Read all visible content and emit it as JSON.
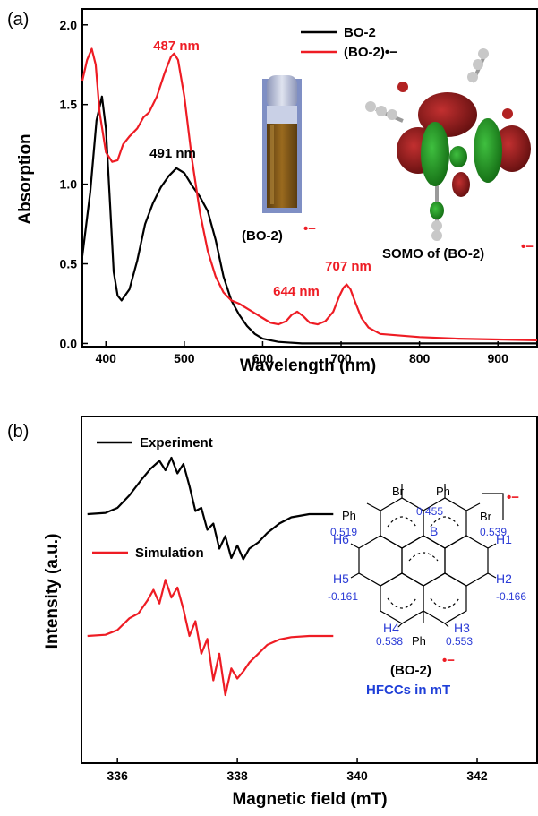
{
  "chart_data": [
    {
      "panel_label": "(a)",
      "type": "line",
      "xlabel": "Wavelength (nm)",
      "ylabel": "Absorption",
      "xlim": [
        370,
        950
      ],
      "ylim": [
        -0.02,
        2.1
      ],
      "xticks": [
        400,
        500,
        600,
        700,
        800,
        900
      ],
      "yticks": [
        0.0,
        0.5,
        1.0,
        1.5,
        2.0
      ],
      "xtick_labels": [
        "400",
        "500",
        "600",
        "700",
        "800",
        "900"
      ],
      "ytick_labels": [
        "0.0",
        "0.5",
        "1.0",
        "1.5",
        "2.0"
      ],
      "grid": false,
      "legend_position": "top-right",
      "series": [
        {
          "name": "BO-2",
          "color": "#000000",
          "x": [
            370,
            380,
            388,
            395,
            400,
            405,
            410,
            415,
            420,
            430,
            440,
            450,
            460,
            470,
            480,
            490,
            500,
            510,
            520,
            530,
            540,
            550,
            560,
            570,
            580,
            590,
            600,
            610,
            620,
            650,
            700,
            800,
            950
          ],
          "y": [
            0.55,
            0.95,
            1.4,
            1.55,
            1.35,
            0.9,
            0.45,
            0.3,
            0.27,
            0.34,
            0.52,
            0.75,
            0.88,
            0.98,
            1.05,
            1.1,
            1.07,
            0.99,
            0.92,
            0.83,
            0.65,
            0.42,
            0.27,
            0.18,
            0.11,
            0.06,
            0.03,
            0.02,
            0.01,
            0.0,
            0.0,
            0.0,
            0.0
          ]
        },
        {
          "name": "(BO-2)•−",
          "color": "#ee1c24",
          "x": [
            370,
            376,
            382,
            387,
            392,
            400,
            408,
            415,
            422,
            430,
            440,
            448,
            455,
            465,
            475,
            483,
            487,
            492,
            500,
            510,
            520,
            530,
            540,
            550,
            560,
            570,
            580,
            590,
            600,
            610,
            620,
            630,
            637,
            644,
            652,
            660,
            670,
            680,
            690,
            698,
            703,
            707,
            712,
            718,
            726,
            735,
            750,
            800,
            850,
            900,
            950
          ],
          "y": [
            1.65,
            1.78,
            1.85,
            1.75,
            1.45,
            1.2,
            1.14,
            1.15,
            1.25,
            1.3,
            1.35,
            1.42,
            1.45,
            1.55,
            1.7,
            1.8,
            1.82,
            1.78,
            1.55,
            1.15,
            0.82,
            0.58,
            0.42,
            0.32,
            0.27,
            0.25,
            0.22,
            0.19,
            0.16,
            0.13,
            0.12,
            0.14,
            0.18,
            0.2,
            0.17,
            0.13,
            0.12,
            0.14,
            0.2,
            0.3,
            0.35,
            0.37,
            0.34,
            0.26,
            0.16,
            0.1,
            0.06,
            0.04,
            0.03,
            0.025,
            0.02
          ]
        }
      ],
      "annotations": [
        "487 nm",
        "491 nm",
        "644 nm",
        "707 nm"
      ],
      "inset_labels": {
        "vial": "(BO-2)",
        "somo": "SOMO of (BO-2)"
      },
      "radical_anion_mark": "•−"
    },
    {
      "panel_label": "(b)",
      "type": "line",
      "xlabel": "Magnetic field (mT)",
      "ylabel": "Intensity (a.u.)",
      "xlim": [
        335.4,
        343
      ],
      "xticks": [
        336,
        338,
        340,
        342
      ],
      "xtick_labels": [
        "336",
        "338",
        "340",
        "342"
      ],
      "grid": false,
      "legend_position": "top-left",
      "series": [
        {
          "name": "Experiment",
          "color": "#000000",
          "x": [
            335.5,
            335.8,
            336.0,
            336.2,
            336.4,
            336.55,
            336.7,
            336.8,
            336.9,
            337.0,
            337.1,
            337.2,
            337.3,
            337.4,
            337.5,
            337.6,
            337.7,
            337.8,
            337.9,
            338.0,
            338.1,
            338.2,
            338.35,
            338.5,
            338.7,
            338.9,
            339.2,
            339.6
          ],
          "y": [
            0.0,
            0.02,
            0.1,
            0.3,
            0.55,
            0.72,
            0.85,
            0.7,
            0.9,
            0.65,
            0.8,
            0.45,
            0.05,
            0.1,
            -0.25,
            -0.15,
            -0.55,
            -0.35,
            -0.7,
            -0.5,
            -0.72,
            -0.55,
            -0.45,
            -0.3,
            -0.15,
            -0.05,
            0.0,
            0.0
          ]
        },
        {
          "name": "Simulation",
          "color": "#ee1c24",
          "x": [
            335.5,
            335.8,
            336.0,
            336.2,
            336.35,
            336.5,
            336.6,
            336.7,
            336.8,
            336.9,
            337.0,
            337.1,
            337.2,
            337.3,
            337.4,
            337.5,
            337.6,
            337.7,
            337.8,
            337.9,
            338.0,
            338.1,
            338.2,
            338.35,
            338.5,
            338.7,
            338.9,
            339.2,
            339.6
          ],
          "y": [
            0.0,
            0.02,
            0.1,
            0.3,
            0.38,
            0.6,
            0.78,
            0.55,
            0.95,
            0.65,
            0.82,
            0.45,
            0.0,
            0.25,
            -0.3,
            -0.05,
            -0.75,
            -0.3,
            -1.0,
            -0.55,
            -0.72,
            -0.6,
            -0.45,
            -0.3,
            -0.15,
            -0.06,
            -0.02,
            0.0,
            0.0
          ]
        }
      ],
      "structure": {
        "substituents": [
          "Br",
          "Ph",
          "Ph",
          "Br",
          "Ph",
          "Ph"
        ],
        "boron": "B",
        "hydrogens": [
          "H1",
          "H2",
          "H3",
          "H4",
          "H5",
          "H6"
        ],
        "hfcc_values": [
          "0.455",
          "0.519",
          "0.539",
          "-0.166",
          "0.553",
          "0.538",
          "-0.161"
        ],
        "name": "(BO-2)",
        "caption": "HFCCs in mT"
      }
    }
  ]
}
